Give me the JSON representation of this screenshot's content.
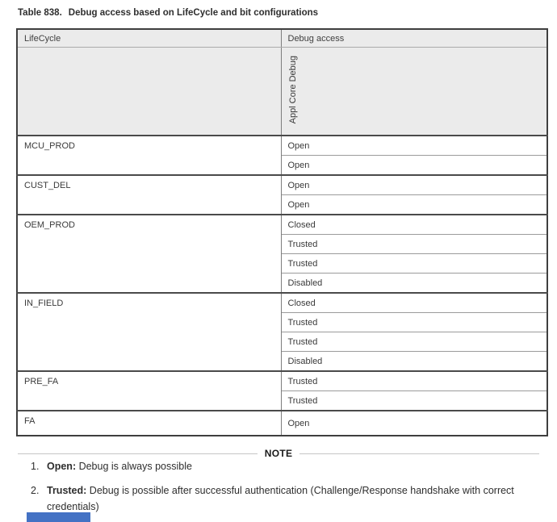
{
  "title": {
    "label": "Table 838.",
    "caption": "Debug access based on LifeCycle and bit configurations"
  },
  "table": {
    "col1_header": "LifeCycle",
    "col2_header": "Debug access",
    "rotated_header": "Appl Core Debug",
    "groups": [
      {
        "lifecycle": "MCU_PROD",
        "values": [
          "Open",
          "Open"
        ]
      },
      {
        "lifecycle": "CUST_DEL",
        "values": [
          "Open",
          "Open"
        ]
      },
      {
        "lifecycle": "OEM_PROD",
        "values": [
          "Closed",
          "Trusted",
          "Trusted",
          "Disabled"
        ]
      },
      {
        "lifecycle": "IN_FIELD",
        "values": [
          "Closed",
          "Trusted",
          "Trusted",
          "Disabled"
        ]
      },
      {
        "lifecycle": "PRE_FA",
        "values": [
          "Trusted",
          "Trusted"
        ]
      },
      {
        "lifecycle": "FA",
        "values": [
          "Open"
        ]
      }
    ]
  },
  "note": {
    "label": "NOTE",
    "items": [
      {
        "number": "1.",
        "term": "Open:",
        "text": "Debug is always possible"
      },
      {
        "number": "2.",
        "term": "Trusted:",
        "text": "Debug is possible after successful authentication (Challenge/Response handshake with correct credentials)"
      }
    ]
  },
  "colors": {
    "header_background": "#ebebeb",
    "table_border": "#3f3f3f",
    "partial_element_blue": "#4472c4"
  }
}
